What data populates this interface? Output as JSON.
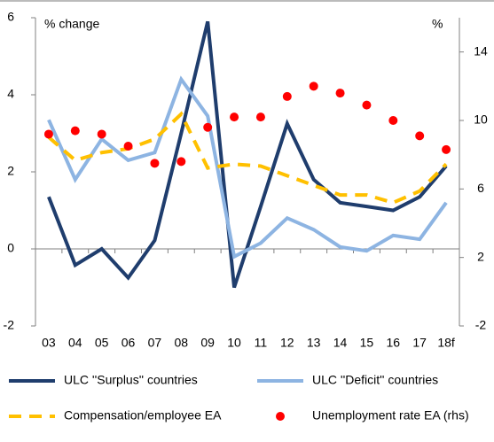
{
  "chart_data": {
    "type": "line",
    "y_label": "% change",
    "y2_label": "%",
    "categories": [
      "03",
      "04",
      "05",
      "06",
      "07",
      "08",
      "09",
      "10",
      "11",
      "12",
      "13",
      "14",
      "15",
      "16",
      "17",
      "18f"
    ],
    "ylim": [
      -2,
      6
    ],
    "yticks": [
      -2,
      0,
      2,
      4,
      6
    ],
    "y2lim": [
      -2,
      16
    ],
    "y2ticks": [
      -2,
      2,
      6,
      10,
      14
    ],
    "series": [
      {
        "name": "ULC ''Surplus'' countries",
        "color": "#1f3d6d",
        "style": "solid",
        "values": [
          1.35,
          -0.42,
          0,
          -0.75,
          0.22,
          3.0,
          5.9,
          -1.0,
          1.1,
          3.25,
          1.8,
          1.2,
          1.1,
          1.0,
          1.35,
          2.15
        ]
      },
      {
        "name": "ULC ''Deficit'' countries",
        "color": "#8db4e2",
        "style": "solid",
        "values": [
          3.35,
          1.8,
          2.85,
          2.3,
          2.5,
          4.4,
          3.45,
          -0.2,
          0.15,
          0.8,
          0.5,
          0.05,
          -0.05,
          0.35,
          0.25,
          1.2
        ]
      },
      {
        "name": "Compensation/employee EA",
        "color": "#ffc000",
        "style": "dashed",
        "values": [
          2.9,
          2.3,
          2.5,
          2.6,
          2.85,
          3.5,
          2.1,
          2.2,
          2.15,
          1.9,
          1.65,
          1.4,
          1.4,
          1.2,
          1.5,
          2.2
        ]
      },
      {
        "name": "Unemployment rate EA (rhs)",
        "color": "#ff0000",
        "style": "dots",
        "axis": "y2",
        "values": [
          9.2,
          9.4,
          9.2,
          8.5,
          7.5,
          7.6,
          9.6,
          10.2,
          10.2,
          11.4,
          12.0,
          11.6,
          10.9,
          10.0,
          9.1,
          8.3
        ]
      }
    ]
  }
}
